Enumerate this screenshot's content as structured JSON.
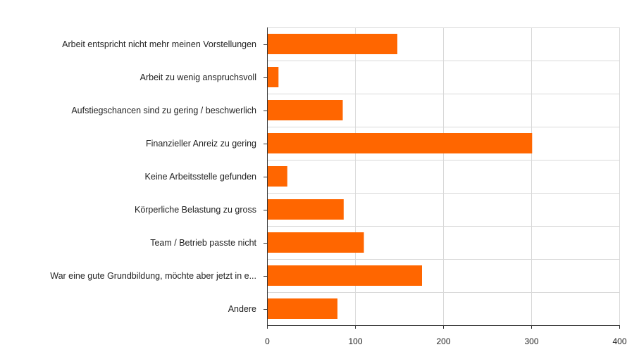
{
  "chart_data": {
    "type": "bar",
    "orientation": "horizontal",
    "categories": [
      "Arbeit entspricht nicht mehr meinen Vorstellungen",
      "Arbeit zu wenig anspruchsvoll",
      "Aufstiegschancen sind zu gering / beschwerlich",
      "Finanzieller Anreiz zu gering",
      "Keine Arbeitsstelle gefunden",
      "Körperliche Belastung zu gross",
      "Team / Betrieb passte nicht",
      "War eine gute Grundbildung, möchte aber jetzt in e...",
      "Andere"
    ],
    "values": [
      148,
      13,
      86,
      301,
      23,
      87,
      110,
      176,
      80
    ],
    "xlim": [
      0,
      400
    ],
    "xticks": [
      "0",
      "100",
      "200",
      "300",
      "400"
    ],
    "grid": true,
    "bar_color": "#ff6600",
    "title": "",
    "xlabel": "",
    "ylabel": ""
  }
}
